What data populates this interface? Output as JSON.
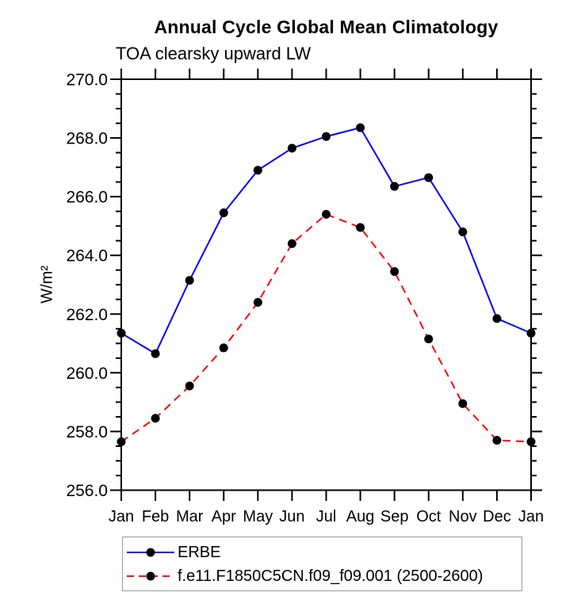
{
  "chart_data": {
    "type": "line",
    "title": "Annual Cycle Global Mean Climatology",
    "subtitle": "TOA clearsky upward LW",
    "categories": [
      "Jan",
      "Feb",
      "Mar",
      "Apr",
      "May",
      "Jun",
      "Jul",
      "Aug",
      "Sep",
      "Oct",
      "Nov",
      "Dec",
      "Jan"
    ],
    "series": [
      {
        "name": "ERBE",
        "color": "#0000ff",
        "line_style": "solid",
        "values": [
          261.35,
          260.65,
          263.15,
          265.45,
          266.9,
          267.65,
          268.05,
          268.35,
          266.35,
          266.65,
          264.8,
          261.85,
          261.35
        ]
      },
      {
        "name": "f.e11.F1850C5CN.f09_f09.001 (2500-2600)",
        "color": "#ff0000",
        "line_style": "dashed",
        "values": [
          257.65,
          258.45,
          259.55,
          260.85,
          262.4,
          264.4,
          265.4,
          264.95,
          263.45,
          261.15,
          258.95,
          257.7,
          257.65
        ]
      }
    ],
    "xlabel": "",
    "ylabel": "W/m²",
    "ylim": [
      256.0,
      270.0
    ],
    "ytick_major": 2.0,
    "ytick_minor": 0.5,
    "ytick_labels": [
      "256.0",
      "258.0",
      "260.0",
      "262.0",
      "264.0",
      "266.0",
      "268.0",
      "270.0"
    ],
    "grid": false,
    "legend_position": "bottom",
    "marker": {
      "shape": "filled-circle",
      "color": "#000000"
    },
    "frame_color": "#000000",
    "background": "#ffffff"
  }
}
